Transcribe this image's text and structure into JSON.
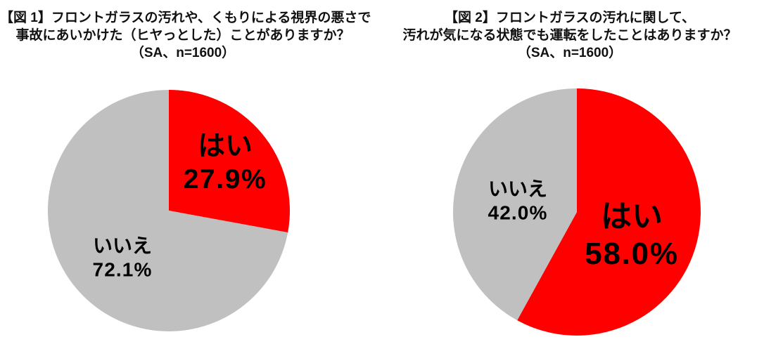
{
  "page": {
    "background": "#ffffff"
  },
  "chart_data": [
    {
      "type": "pie",
      "title_lines": [
        "【図 1】フロントガラスの汚れや、くもりによる視界の悪さで",
        "事故にあいかけた（ヒヤっとした）ことがありますか？",
        "（SA、n=1600）"
      ],
      "unit": "%",
      "start_angle_deg": 0,
      "clockwise": true,
      "legend_position": "none",
      "label_color": "#000000",
      "slices": [
        {
          "label": "はい",
          "value": 27.9,
          "color": "#ff0000"
        },
        {
          "label": "いいえ",
          "value": 72.1,
          "color": "#c0c0c0"
        }
      ]
    },
    {
      "type": "pie",
      "title_lines": [
        "【図 2】フロントガラスの汚れに関して、",
        "汚れが気になる状態でも運転をしたことはありますか？",
        "（SA、n=1600）"
      ],
      "unit": "%",
      "start_angle_deg": 0,
      "clockwise": true,
      "legend_position": "none",
      "label_color": "#000000",
      "slices": [
        {
          "label": "はい",
          "value": 58.0,
          "color": "#ff0000"
        },
        {
          "label": "いいえ",
          "value": 42.0,
          "color": "#c0c0c0"
        }
      ]
    }
  ]
}
